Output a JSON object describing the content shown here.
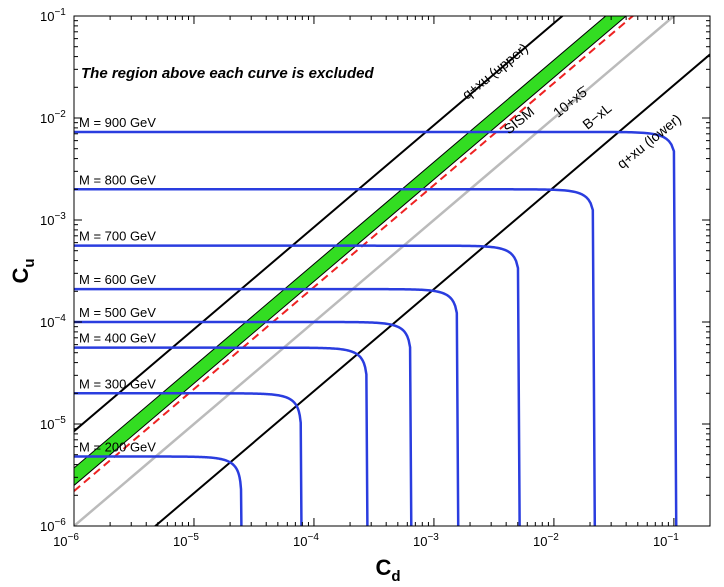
{
  "chart_data": {
    "type": "line",
    "xscale": "log",
    "yscale": "log",
    "xlim": [
      1e-06,
      0.2
    ],
    "ylim": [
      1e-06,
      0.1
    ],
    "xlabel_main": "C",
    "xlabel_sub": "d",
    "ylabel_main": "C",
    "ylabel_sub": "u",
    "grid": false,
    "x_ticks": [
      {
        "value": 1e-06,
        "base": "10",
        "exp": "−6"
      },
      {
        "value": 1e-05,
        "base": "10",
        "exp": "−5"
      },
      {
        "value": 0.0001,
        "base": "10",
        "exp": "−4"
      },
      {
        "value": 0.001,
        "base": "10",
        "exp": "−3"
      },
      {
        "value": 0.01,
        "base": "10",
        "exp": "−2"
      },
      {
        "value": 0.1,
        "base": "10",
        "exp": "−1"
      }
    ],
    "y_ticks": [
      {
        "value": 1e-06,
        "base": "10",
        "exp": "−6"
      },
      {
        "value": 1e-05,
        "base": "10",
        "exp": "−5"
      },
      {
        "value": 0.0001,
        "base": "10",
        "exp": "−4"
      },
      {
        "value": 0.001,
        "base": "10",
        "exp": "−3"
      },
      {
        "value": 0.01,
        "base": "10",
        "exp": "−2"
      },
      {
        "value": 0.1,
        "base": "10",
        "exp": "−1"
      }
    ],
    "exclusion_note": "The region above each curve is excluded",
    "mass_curves": [
      {
        "label": "M = 200 GeV",
        "cu_limit": 4.8e-06,
        "cd_limit": 2.5e-05
      },
      {
        "label": "M = 300 GeV",
        "cu_limit": 2e-05,
        "cd_limit": 7.9e-05
      },
      {
        "label": "M = 400 GeV",
        "cu_limit": 5.6e-05,
        "cd_limit": 0.00028
      },
      {
        "label": "M = 500 GeV",
        "cu_limit": 0.0001,
        "cd_limit": 0.00065
      },
      {
        "label": "M = 600 GeV",
        "cu_limit": 0.00021,
        "cd_limit": 0.0016
      },
      {
        "label": "M = 700 GeV",
        "cu_limit": 0.00056,
        "cd_limit": 0.0052
      },
      {
        "label": "M = 800 GeV",
        "cu_limit": 0.002,
        "cd_limit": 0.022
      },
      {
        "label": "M = 900 GeV",
        "cu_limit": 0.0073,
        "cd_limit": 0.105
      }
    ],
    "model_lines": [
      {
        "label": "q+xu (upper)",
        "cu_at_cd_1e-6": 8.5e-06,
        "color": "#000000",
        "style": "solid"
      },
      {
        "label": "SISM",
        "cu_at_cd_1e-6": 3e-06,
        "band_low": 2.5e-06,
        "band_high": 3.7e-06,
        "color": "#33dd22",
        "style": "band"
      },
      {
        "label": "10+x5̄",
        "cu_at_cd_1e-6": 2.2e-06,
        "color": "#ee2222",
        "style": "dashed"
      },
      {
        "label": "B−xL",
        "cu_at_cd_1e-6": 1e-06,
        "color": "#bbbbbb",
        "style": "solid"
      },
      {
        "label": "q+xu (lower)",
        "cu_at_cd_1e-6": 2.1e-07,
        "color": "#000000",
        "style": "solid"
      }
    ],
    "colors": {
      "mass_curve": "#2a3ddf",
      "black_line": "#000000"
    }
  }
}
